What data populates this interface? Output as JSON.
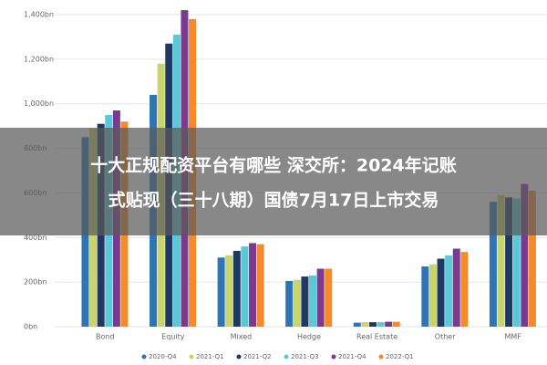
{
  "chart_data": {
    "type": "bar",
    "categories": [
      "Bond",
      "Equity",
      "Mixed",
      "Hedge",
      "Real Estate",
      "Other",
      "MMF"
    ],
    "series": [
      {
        "name": "2020-Q4",
        "color": "#2e75b6",
        "values": [
          850,
          1040,
          310,
          205,
          18,
          270,
          560
        ]
      },
      {
        "name": "2021-Q1",
        "color": "#c9d46c",
        "values": [
          890,
          1180,
          320,
          210,
          20,
          280,
          590
        ]
      },
      {
        "name": "2021-Q2",
        "color": "#1f3864",
        "values": [
          910,
          1270,
          340,
          225,
          20,
          305,
          580
        ]
      },
      {
        "name": "2021-Q3",
        "color": "#5bc8d8",
        "values": [
          950,
          1310,
          360,
          230,
          20,
          320,
          575
        ]
      },
      {
        "name": "2021-Q4",
        "color": "#7a3b8f",
        "values": [
          970,
          1420,
          375,
          260,
          22,
          350,
          640
        ]
      },
      {
        "name": "2022-Q1",
        "color": "#f58a2a",
        "values": [
          920,
          1380,
          370,
          260,
          22,
          335,
          610
        ]
      }
    ],
    "ylim": [
      0,
      1400
    ],
    "yticks": [
      {
        "value": 0,
        "label": "0bn"
      },
      {
        "value": 200,
        "label": "200bn"
      },
      {
        "value": 400,
        "label": "400bn"
      },
      {
        "value": 600,
        "label": "600bn"
      },
      {
        "value": 800,
        "label": "800bn"
      },
      {
        "value": 1000,
        "label": "1,000bn"
      },
      {
        "value": 1200,
        "label": "1,200bn"
      },
      {
        "value": 1400,
        "label": "1,400bn"
      }
    ],
    "grid": true,
    "legend": "bottom",
    "banner": [
      "十大正规配资平台有哪些 深交所：2024年记账",
      "式贴现（三十八期）国债7月17日上市交易"
    ]
  }
}
